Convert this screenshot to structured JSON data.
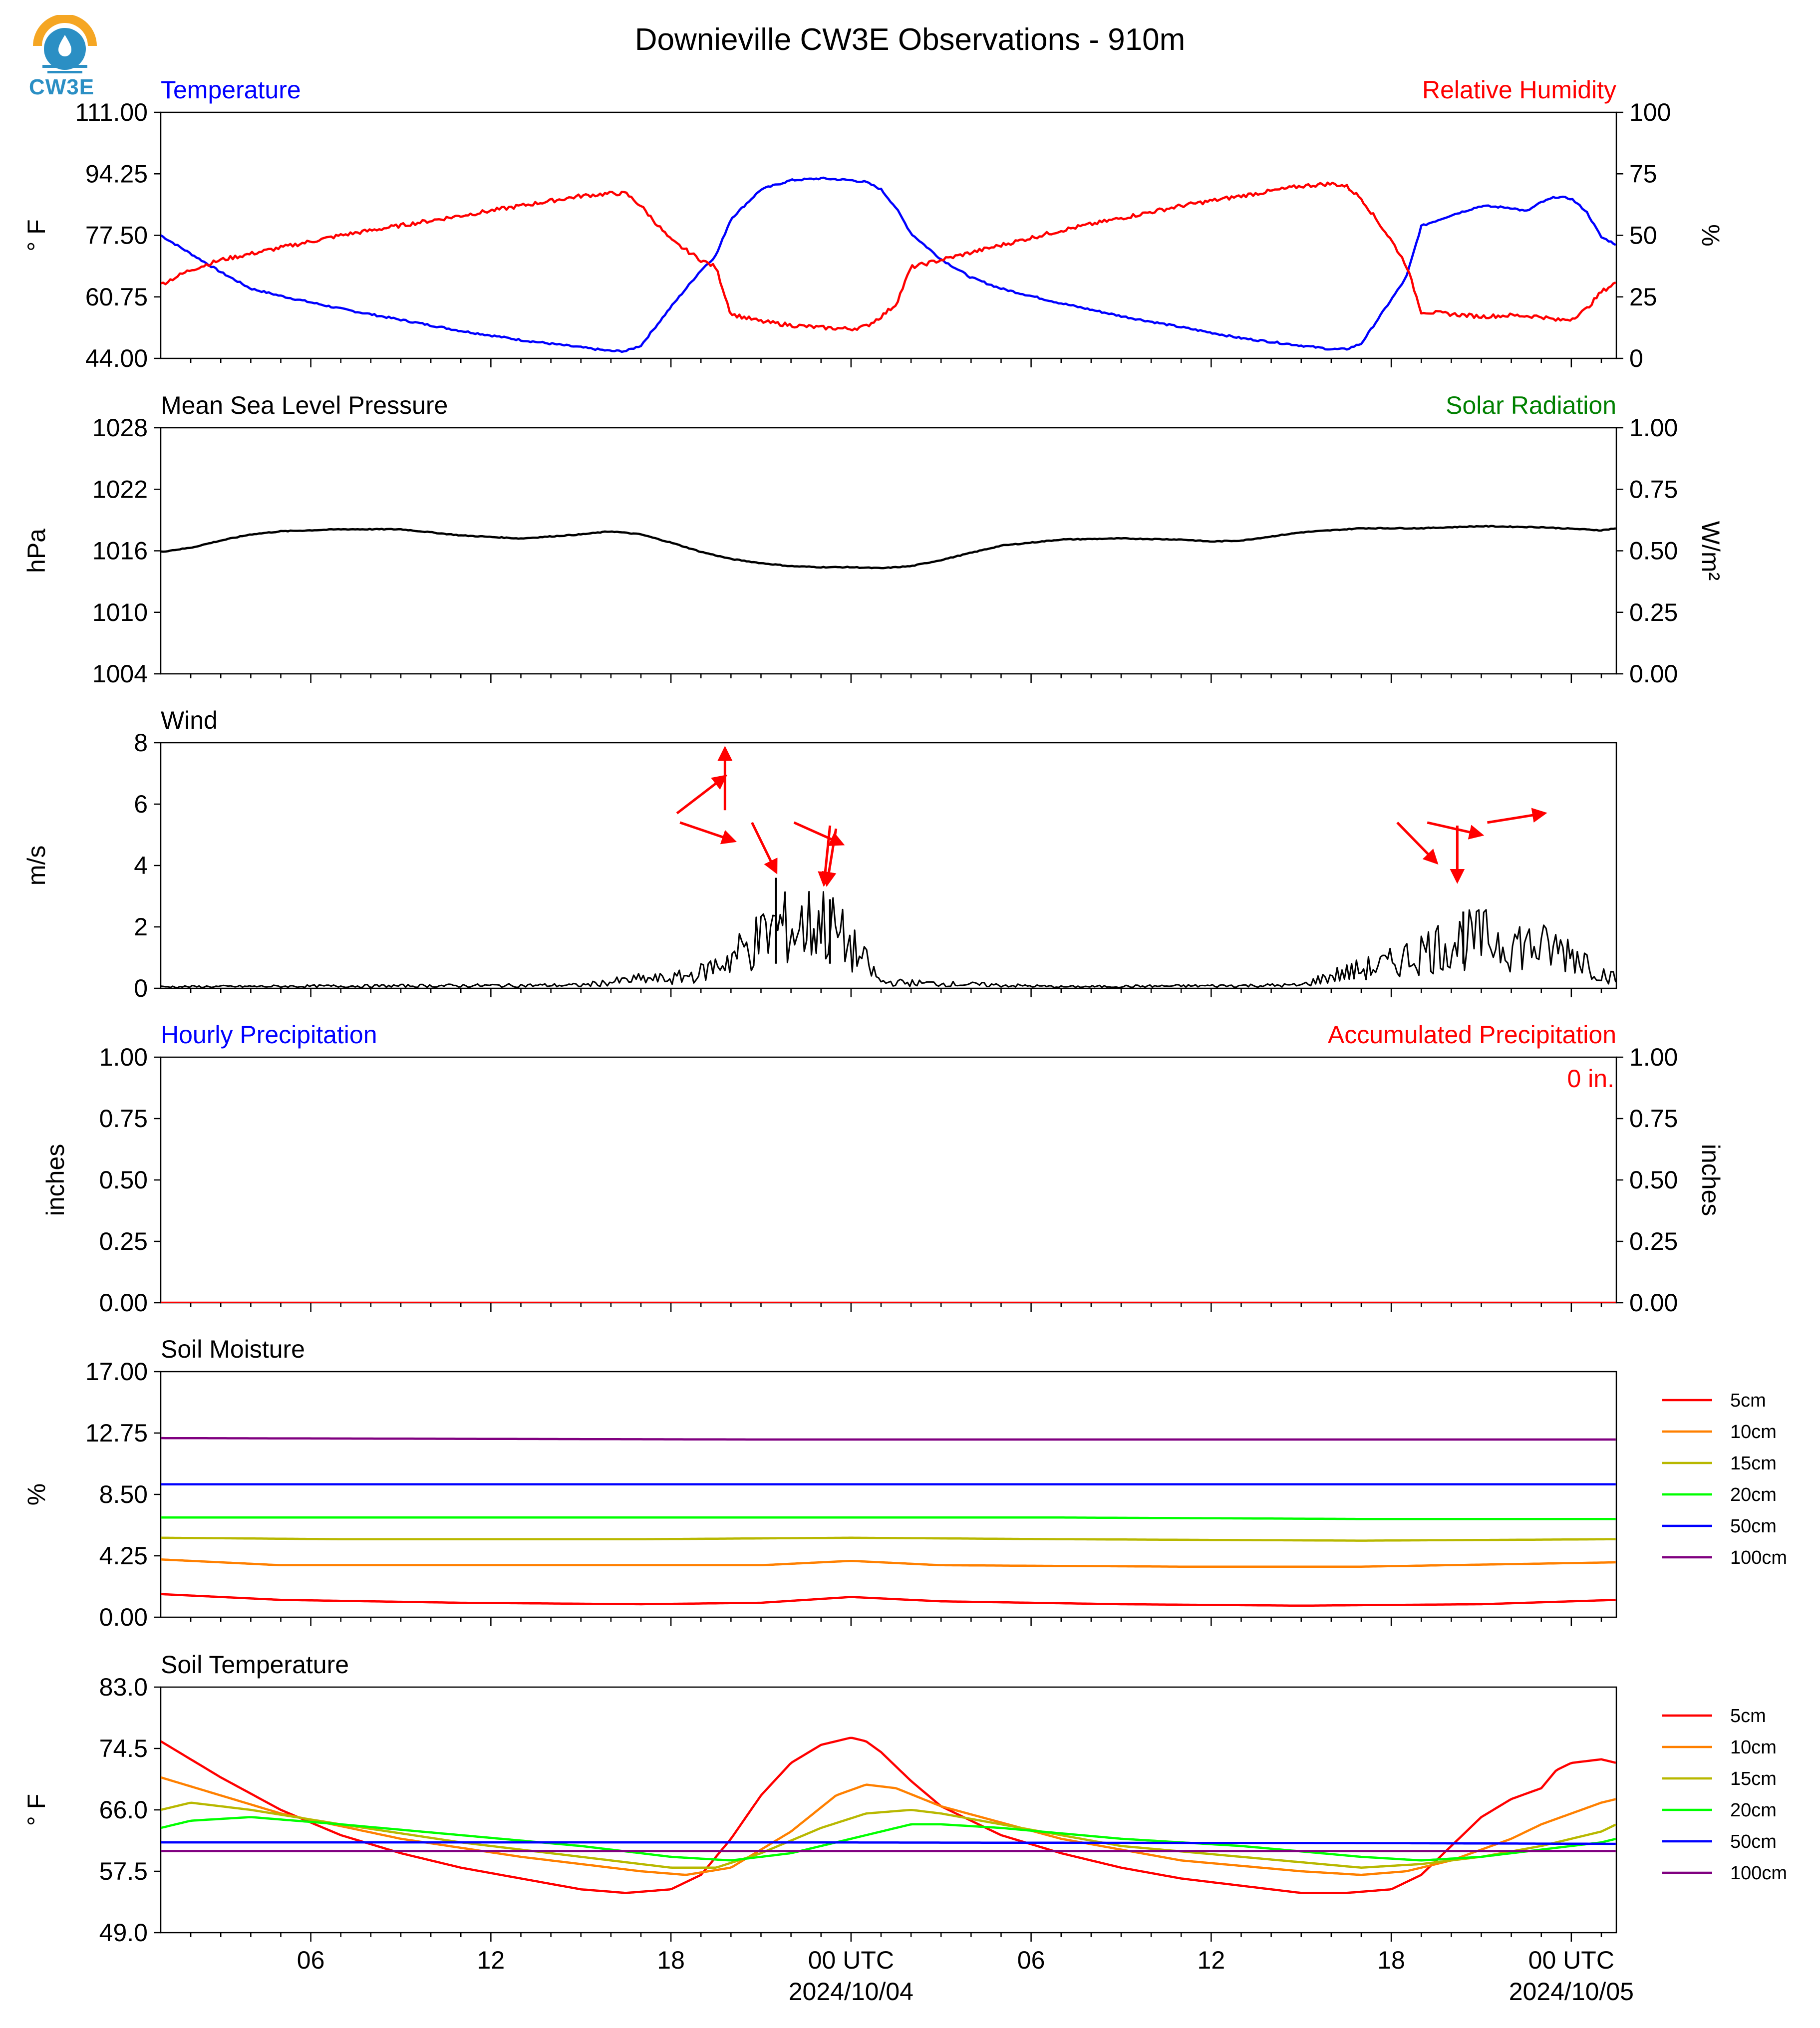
{
  "title": "Downieville CW3E Observations - 910m",
  "logo_text": "CW3E",
  "colors": {
    "temperature": "#0000ff",
    "humidity": "#ff0000",
    "solar": "#008000",
    "pressure": "#000000",
    "wind": "#000000",
    "wind_arrows": "#ff0000",
    "accum": "#ff0000",
    "hourly": "#0000ff",
    "logo_orange": "#f5a623",
    "logo_blue": "#2b8fc4"
  },
  "x_axis": {
    "range_hours": [
      0,
      48.5
    ],
    "major_ticks": [
      {
        "hour": 5,
        "label": "06",
        "sub": ""
      },
      {
        "hour": 11,
        "label": "12",
        "sub": ""
      },
      {
        "hour": 17,
        "label": "18",
        "sub": ""
      },
      {
        "hour": 23,
        "label": "00 UTC",
        "sub": "2024/10/04"
      },
      {
        "hour": 29,
        "label": "06",
        "sub": ""
      },
      {
        "hour": 35,
        "label": "12",
        "sub": ""
      },
      {
        "hour": 41,
        "label": "18",
        "sub": ""
      },
      {
        "hour": 47,
        "label": "00 UTC",
        "sub": "2024/10/05"
      }
    ]
  },
  "chart_data": [
    {
      "type": "line",
      "title_left": "Temperature",
      "title_right": "Relative Humidity",
      "ylabel_left": "° F",
      "ylabel_right": "%",
      "ylim_left": [
        44.0,
        111.0
      ],
      "ylim_right": [
        0,
        100
      ],
      "yticks_left": [
        "44.00",
        "60.75",
        "77.50",
        "94.25",
        "111.00"
      ],
      "yticks_right": [
        "0",
        "25",
        "50",
        "75",
        "100"
      ],
      "series": [
        {
          "name": "Temperature",
          "axis": "left",
          "x": [
            0,
            1,
            2,
            3,
            4,
            6,
            8,
            10,
            12,
            14,
            15,
            15.5,
            16,
            17,
            18,
            18.5,
            19,
            20,
            21,
            22,
            23,
            23.5,
            24,
            24.5,
            25,
            26,
            27,
            28,
            30,
            32,
            34,
            36,
            38,
            39,
            39.5,
            40,
            41,
            41.5,
            42,
            43,
            44,
            45,
            45.5,
            46,
            46.5,
            47,
            47.5,
            48,
            48.5
          ],
          "y": [
            77.5,
            72.5,
            67.5,
            63.0,
            61.0,
            57.5,
            54.5,
            51.5,
            49.0,
            47.0,
            46.0,
            46.0,
            47.5,
            58.0,
            68.0,
            72.0,
            82.0,
            90.0,
            92.5,
            93.0,
            92.5,
            92.0,
            90.0,
            85.0,
            78.0,
            71.0,
            66.0,
            63.0,
            59.0,
            55.5,
            52.5,
            49.5,
            47.5,
            46.5,
            46.5,
            48.0,
            60.0,
            66.0,
            80.0,
            83.0,
            85.5,
            85.0,
            84.0,
            86.5,
            88.0,
            87.5,
            84.0,
            77.0,
            75.0
          ]
        },
        {
          "name": "Relative Humidity",
          "axis": "right",
          "x": [
            0,
            1,
            2,
            4,
            6,
            8,
            10,
            12,
            14,
            15,
            15.5,
            16,
            17,
            18,
            18.5,
            19,
            20,
            21,
            22,
            23,
            23.5,
            24,
            24.5,
            25,
            26,
            28,
            30,
            32,
            34,
            36,
            38,
            39,
            39.5,
            40,
            41,
            41.5,
            42,
            43,
            44,
            45,
            46,
            46.5,
            47,
            47.5,
            48,
            48.5
          ],
          "y": [
            30,
            36,
            40,
            45,
            50,
            54,
            58,
            62,
            66,
            67,
            67,
            62,
            48,
            40,
            37,
            18,
            15,
            13.5,
            12.5,
            12,
            13,
            17,
            22,
            37,
            40,
            46,
            52,
            57,
            62,
            66,
            70,
            71,
            70,
            65,
            48,
            38,
            19,
            18,
            17,
            17.5,
            17,
            15.5,
            16,
            20,
            27,
            31
          ]
        }
      ]
    },
    {
      "type": "line",
      "title_left": "Mean Sea Level Pressure",
      "title_right": "Solar Radiation",
      "ylabel_left": "hPa",
      "ylabel_right": "W/m²",
      "ylim_left": [
        1004,
        1028
      ],
      "ylim_right": [
        0.0,
        1.0
      ],
      "yticks_left": [
        "1004",
        "1010",
        "1016",
        "1022",
        "1028"
      ],
      "yticks_right": [
        "0.00",
        "0.25",
        "0.50",
        "0.75",
        "1.00"
      ],
      "series": [
        {
          "name": "Mean Sea Level Pressure",
          "axis": "left",
          "x": [
            0,
            1,
            2,
            3,
            4,
            6,
            8,
            10,
            12,
            14,
            15,
            16,
            17,
            18,
            19,
            20,
            21,
            22,
            23,
            24,
            25,
            26,
            27,
            28,
            30,
            32,
            34,
            35,
            36,
            37,
            38,
            40,
            42,
            44,
            46,
            48,
            48.5
          ],
          "y": [
            1015.9,
            1016.3,
            1017.0,
            1017.6,
            1017.9,
            1018.1,
            1018.1,
            1017.5,
            1017.2,
            1017.6,
            1017.9,
            1017.6,
            1016.8,
            1015.9,
            1015.2,
            1014.8,
            1014.5,
            1014.4,
            1014.4,
            1014.3,
            1014.5,
            1015.1,
            1015.8,
            1016.5,
            1017.1,
            1017.2,
            1017.1,
            1016.9,
            1017.0,
            1017.4,
            1017.8,
            1018.2,
            1018.2,
            1018.4,
            1018.3,
            1018.0,
            1018.2
          ]
        }
      ]
    },
    {
      "type": "line",
      "title_left": "Wind",
      "ylabel_left": "m/s",
      "ylim_left": [
        0,
        8
      ],
      "yticks_left": [
        "0",
        "2",
        "4",
        "6",
        "8"
      ],
      "series": [
        {
          "name": "Wind",
          "axis": "left",
          "x": [
            0,
            14,
            15,
            16,
            17,
            18,
            19,
            20,
            20.5,
            21,
            21.5,
            22,
            22.5,
            23,
            23.5,
            24,
            30,
            38,
            39,
            40,
            41,
            42,
            43,
            44,
            45,
            46,
            47,
            47.5,
            48,
            48.5
          ],
          "y": [
            0.05,
            0.1,
            0.2,
            0.3,
            0.3,
            0.5,
            1.0,
            1.6,
            2.0,
            1.9,
            2.0,
            2.2,
            1.8,
            1.3,
            0.8,
            0.2,
            0.05,
            0.1,
            0.4,
            0.6,
            0.8,
            1.2,
            1.5,
            1.6,
            1.5,
            1.3,
            1.2,
            0.9,
            0.5,
            0.3
          ]
        }
      ],
      "spikes": [
        {
          "x": 20.5,
          "y": 3.6
        },
        {
          "x": 22.3,
          "y": 2.9
        },
        {
          "x": 43.4,
          "y": 2.5
        }
      ],
      "arrows": [
        {
          "x": 17.2,
          "y": 5.7,
          "dx": 1.6,
          "dy": 1.2
        },
        {
          "x": 18.8,
          "y": 5.8,
          "dx": 0.0,
          "dy": 2.0
        },
        {
          "x": 17.3,
          "y": 5.4,
          "dx": 1.8,
          "dy": -0.6
        },
        {
          "x": 19.7,
          "y": 5.4,
          "dx": 0.8,
          "dy": -1.6
        },
        {
          "x": 21.1,
          "y": 5.4,
          "dx": 1.6,
          "dy": -0.7
        },
        {
          "x": 22.3,
          "y": 5.3,
          "dx": -0.2,
          "dy": -1.9
        },
        {
          "x": 22.5,
          "y": 5.2,
          "dx": -0.3,
          "dy": -1.8
        },
        {
          "x": 41.2,
          "y": 5.4,
          "dx": 1.3,
          "dy": -1.3
        },
        {
          "x": 42.2,
          "y": 5.4,
          "dx": 1.8,
          "dy": -0.4
        },
        {
          "x": 43.2,
          "y": 5.3,
          "dx": 0.0,
          "dy": -1.8
        },
        {
          "x": 44.2,
          "y": 5.4,
          "dx": 1.9,
          "dy": 0.3
        }
      ]
    },
    {
      "type": "line",
      "title_left": "Hourly Precipitation",
      "title_right": "Accumulated Precipitation",
      "annotation": "0 in.",
      "ylabel_left": "inches",
      "ylabel_right": "inches",
      "ylim_left": [
        0.0,
        1.0
      ],
      "ylim_right": [
        0.0,
        1.0
      ],
      "yticks_left": [
        "0.00",
        "0.25",
        "0.50",
        "0.75",
        "1.00"
      ],
      "yticks_right": [
        "0.00",
        "0.25",
        "0.50",
        "0.75",
        "1.00"
      ],
      "series": [
        {
          "name": "Accumulated Precipitation",
          "axis": "left",
          "x": [
            0,
            48.5
          ],
          "y": [
            0,
            0
          ]
        }
      ]
    },
    {
      "type": "line",
      "title_left": "Soil Moisture",
      "ylabel_left": "%",
      "ylim_left": [
        0.0,
        17.0
      ],
      "yticks_left": [
        "0.00",
        "4.25",
        "8.50",
        "12.75",
        "17.00"
      ],
      "legend": "right",
      "series": [
        {
          "name": "5cm",
          "color": "#ff0000",
          "x": [
            0,
            4,
            10,
            16,
            20,
            23,
            26,
            32,
            38,
            44,
            48.5
          ],
          "y": [
            1.6,
            1.2,
            1.0,
            0.9,
            1.0,
            1.4,
            1.1,
            0.9,
            0.8,
            0.9,
            1.2
          ]
        },
        {
          "name": "10cm",
          "color": "#ff8000",
          "x": [
            0,
            4,
            12,
            20,
            23,
            26,
            34,
            40,
            48.5
          ],
          "y": [
            4.0,
            3.6,
            3.6,
            3.6,
            3.9,
            3.6,
            3.5,
            3.5,
            3.8
          ]
        },
        {
          "name": "15cm",
          "color": "#b8b800",
          "x": [
            0,
            6,
            16,
            23,
            30,
            40,
            48.5
          ],
          "y": [
            5.5,
            5.4,
            5.4,
            5.5,
            5.4,
            5.3,
            5.4
          ]
        },
        {
          "name": "20cm",
          "color": "#00ff00",
          "x": [
            0,
            10,
            20,
            30,
            40,
            48.5
          ],
          "y": [
            6.9,
            6.9,
            6.9,
            6.9,
            6.8,
            6.8
          ]
        },
        {
          "name": "50cm",
          "color": "#0000ff",
          "x": [
            0,
            20,
            40,
            48.5
          ],
          "y": [
            9.2,
            9.2,
            9.2,
            9.2
          ]
        },
        {
          "name": "100cm",
          "color": "#800080",
          "x": [
            0,
            20,
            40,
            48.5
          ],
          "y": [
            12.4,
            12.3,
            12.3,
            12.3
          ]
        }
      ]
    },
    {
      "type": "line",
      "title_left": "Soil Temperature",
      "ylabel_left": "° F",
      "ylim_left": [
        49.0,
        83.0
      ],
      "yticks_left": [
        "49.0",
        "57.5",
        "66.0",
        "74.5",
        "83.0"
      ],
      "legend": "right",
      "series": [
        {
          "name": "5cm",
          "color": "#ff0000",
          "x": [
            0,
            2,
            4,
            6,
            8,
            10,
            12,
            14,
            15.5,
            17,
            18,
            19,
            20,
            21,
            22,
            23,
            23.5,
            24,
            25,
            26,
            28,
            30,
            32,
            34,
            36,
            38,
            39.5,
            41,
            42,
            43,
            44,
            45,
            46,
            46.5,
            47,
            48,
            48.5
          ],
          "y": [
            75.5,
            70.5,
            66.0,
            62.5,
            60.0,
            58.0,
            56.5,
            55.0,
            54.5,
            55.0,
            57.0,
            62.0,
            68.0,
            72.5,
            75.0,
            76.0,
            75.5,
            74.0,
            70.0,
            66.5,
            62.5,
            60.0,
            58.0,
            56.5,
            55.5,
            54.5,
            54.5,
            55.0,
            57.0,
            61.0,
            65.0,
            67.5,
            69.0,
            71.5,
            72.5,
            73.0,
            72.5
          ]
        },
        {
          "name": "10cm",
          "color": "#ff8000",
          "x": [
            0,
            2,
            4,
            8,
            12,
            16,
            17.5,
            19,
            21,
            22.5,
            23.5,
            24.5,
            26,
            30,
            34,
            38,
            40,
            41.5,
            43,
            45,
            46,
            47,
            48,
            48.5
          ],
          "y": [
            70.5,
            68.0,
            65.5,
            62.0,
            59.5,
            57.5,
            57.0,
            58.0,
            63.0,
            68.0,
            69.5,
            69.0,
            66.5,
            62.0,
            59.0,
            57.5,
            57.0,
            57.5,
            59.0,
            62.0,
            64.0,
            65.5,
            67.0,
            67.5
          ]
        },
        {
          "name": "15cm",
          "color": "#b8b800",
          "x": [
            0,
            1,
            3,
            6,
            10,
            14,
            17,
            18.5,
            20,
            22,
            23.5,
            25,
            26,
            28,
            32,
            36,
            40,
            42,
            44,
            46,
            48,
            48.5
          ],
          "y": [
            66.0,
            67.0,
            66.0,
            64.0,
            61.5,
            59.5,
            58.0,
            58.0,
            60.0,
            63.5,
            65.5,
            66.0,
            65.5,
            64.0,
            61.0,
            59.5,
            58.0,
            58.5,
            59.5,
            61.0,
            63.0,
            64.0
          ]
        },
        {
          "name": "20cm",
          "color": "#00ff00",
          "x": [
            0,
            1,
            3,
            6,
            10,
            14,
            17,
            19,
            21,
            23,
            25,
            26,
            28,
            32,
            36,
            40,
            42,
            44,
            46,
            48,
            48.5
          ],
          "y": [
            63.5,
            64.5,
            65.0,
            64.0,
            62.5,
            61.0,
            59.5,
            59.0,
            60.0,
            62.0,
            64.0,
            64.0,
            63.5,
            62.0,
            61.0,
            59.5,
            59.0,
            59.5,
            60.5,
            61.5,
            62.0
          ]
        },
        {
          "name": "50cm",
          "color": "#0000ff",
          "x": [
            0,
            20,
            40,
            48.5
          ],
          "y": [
            61.5,
            61.5,
            61.4,
            61.3
          ]
        },
        {
          "name": "100cm",
          "color": "#800080",
          "x": [
            0,
            20,
            40,
            48.5
          ],
          "y": [
            60.3,
            60.3,
            60.3,
            60.3
          ]
        }
      ]
    }
  ]
}
